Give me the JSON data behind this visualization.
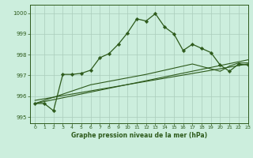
{
  "title": "Graphe pression niveau de la mer (hPa)",
  "background_color": "#cceedd",
  "grid_color": "#aaccbb",
  "line_color": "#2d5a1b",
  "xlim": [
    -0.5,
    23
  ],
  "ylim": [
    994.7,
    1000.4
  ],
  "yticks": [
    995,
    996,
    997,
    998,
    999,
    1000
  ],
  "xticks": [
    0,
    1,
    2,
    3,
    4,
    5,
    6,
    7,
    8,
    9,
    10,
    11,
    12,
    13,
    14,
    15,
    16,
    17,
    18,
    19,
    20,
    21,
    22,
    23
  ],
  "series1_x": [
    0,
    1,
    2,
    3,
    4,
    5,
    6,
    7,
    8,
    9,
    10,
    11,
    12,
    13,
    14,
    15,
    16,
    17,
    18,
    19,
    20,
    21,
    22,
    23
  ],
  "series1_y": [
    995.65,
    995.65,
    995.3,
    997.05,
    997.05,
    997.1,
    997.25,
    997.85,
    998.05,
    998.5,
    999.05,
    999.72,
    999.62,
    999.97,
    999.33,
    999.0,
    998.2,
    998.5,
    998.3,
    998.1,
    997.5,
    997.2,
    997.55,
    997.5
  ],
  "series2_x": [
    0,
    23
  ],
  "series2_y": [
    995.65,
    997.75
  ],
  "series3_x": [
    0,
    6,
    12,
    17,
    20,
    21,
    22,
    23
  ],
  "series3_y": [
    995.65,
    996.55,
    997.05,
    997.55,
    997.2,
    997.45,
    997.6,
    997.6
  ],
  "series4_x": [
    0,
    23
  ],
  "series4_y": [
    995.8,
    997.55
  ]
}
